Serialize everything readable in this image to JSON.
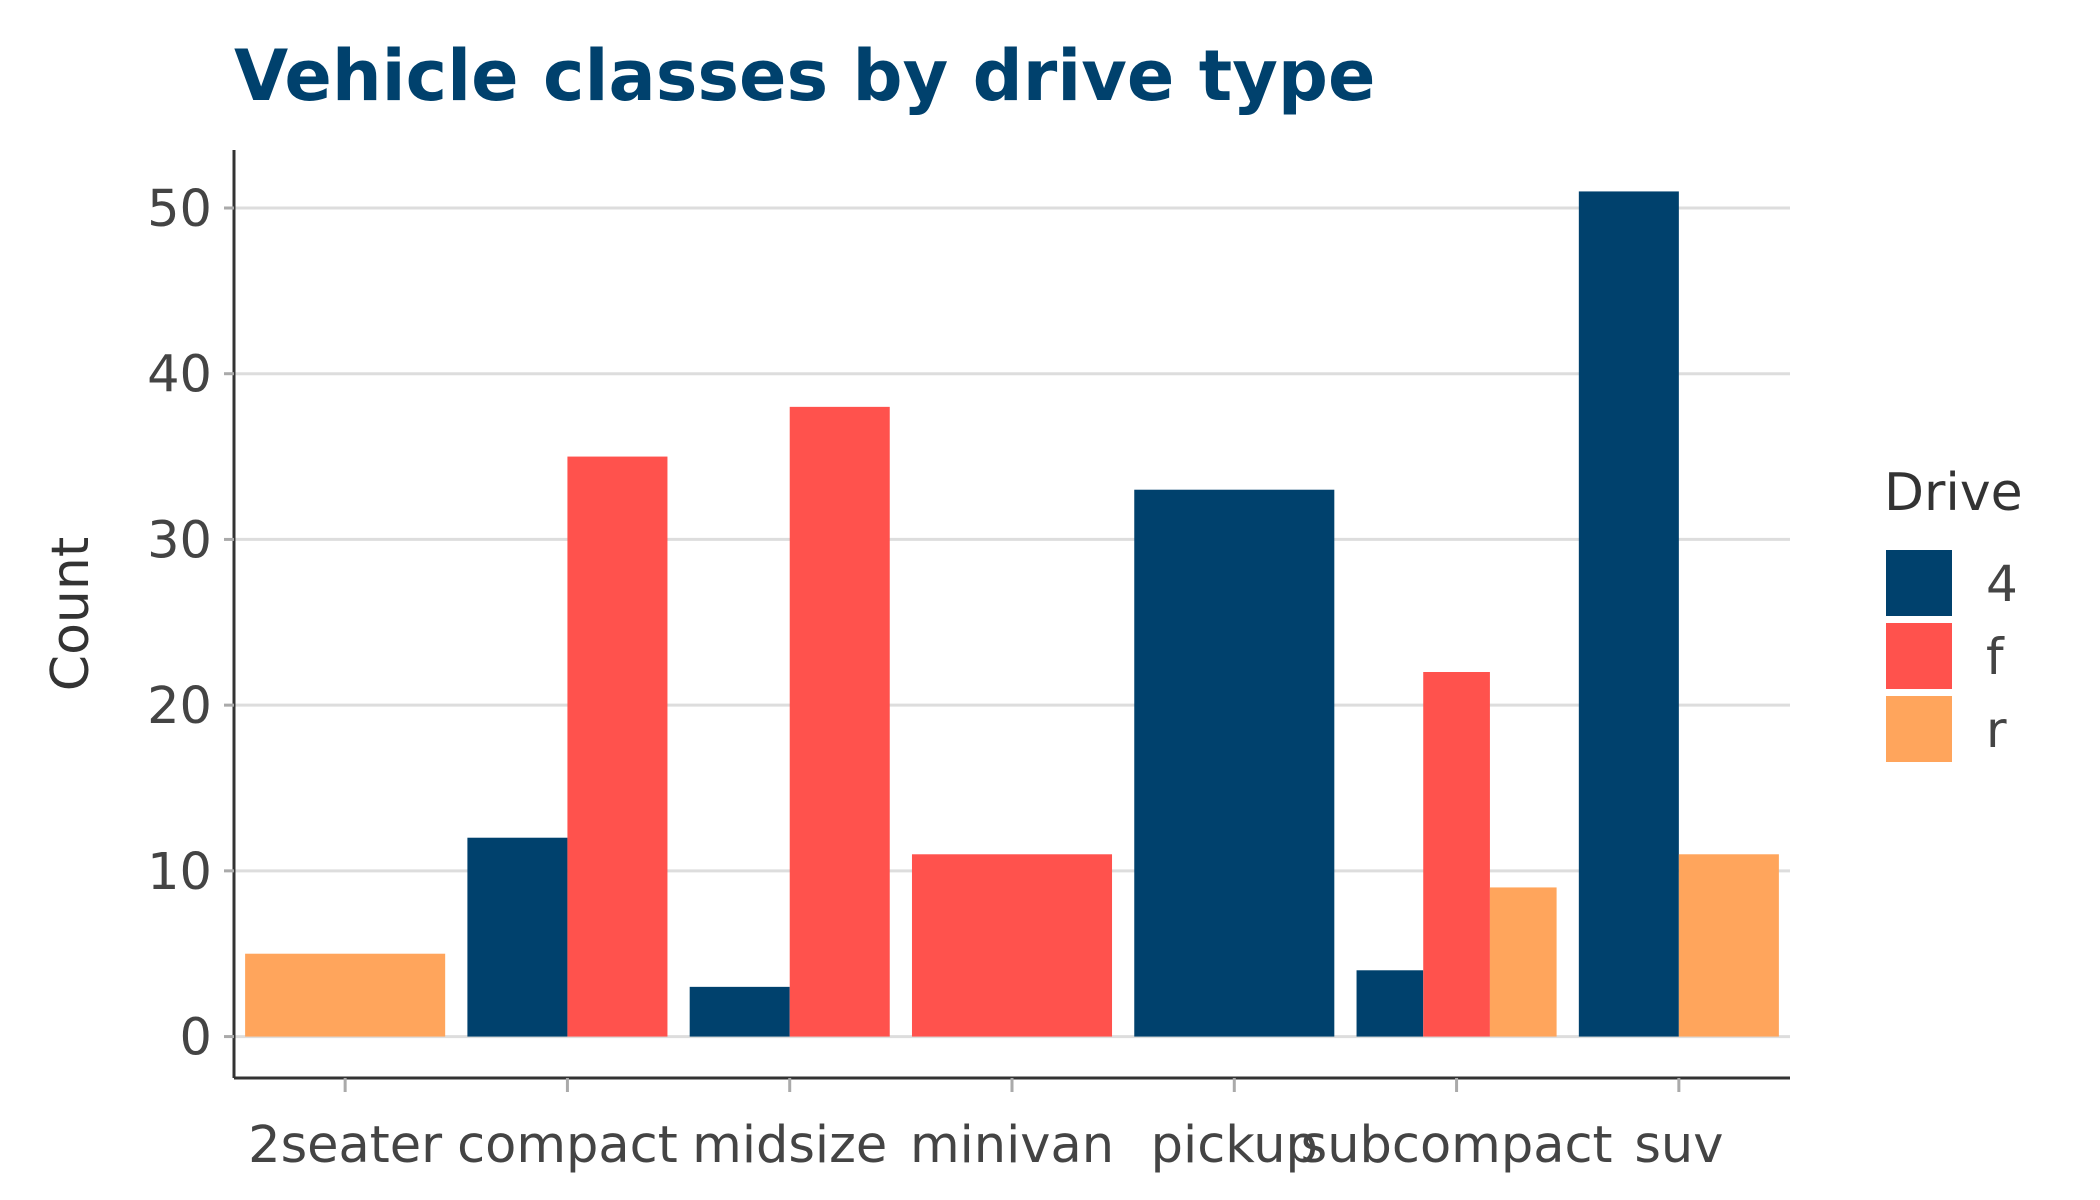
{
  "chart_data": {
    "type": "bar",
    "title": "Vehicle classes by drive type",
    "xlabel": "",
    "ylabel": "Count",
    "ylim": [
      -2.5,
      53.5
    ],
    "yticks": [
      0,
      10,
      20,
      30,
      40,
      50
    ],
    "grid": "horizontal",
    "legend": {
      "title": "Drive",
      "position": "right"
    },
    "categories": [
      "2seater",
      "compact",
      "midsize",
      "minivan",
      "pickup",
      "subcompact",
      "suv"
    ],
    "series": [
      {
        "name": "4",
        "color": "#00416d",
        "values": [
          null,
          12,
          3,
          null,
          33,
          4,
          51
        ]
      },
      {
        "name": "f",
        "color": "#ff524d",
        "values": [
          null,
          35,
          38,
          11,
          null,
          22,
          null
        ]
      },
      {
        "name": "r",
        "color": "#ffa55c",
        "values": [
          5,
          null,
          null,
          null,
          null,
          9,
          11
        ]
      }
    ],
    "colors": {
      "title": "#00416d",
      "grid": "#dddddd",
      "axis": "#333333",
      "tick_label": "#444444"
    }
  }
}
